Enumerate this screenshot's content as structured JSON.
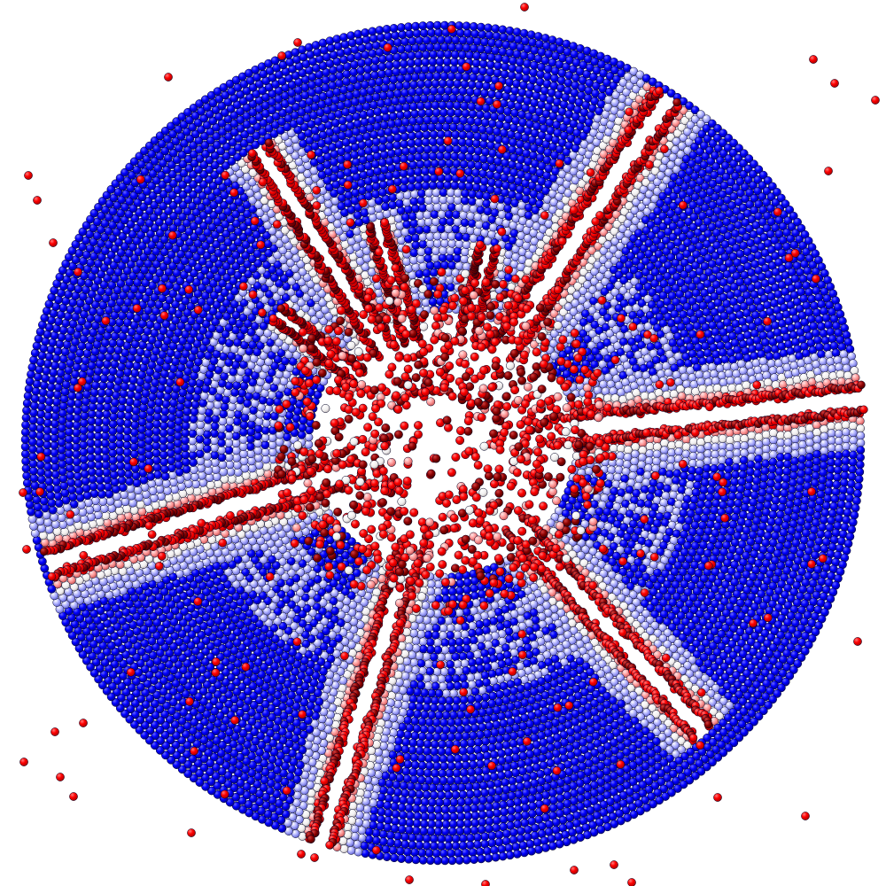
{
  "scene": {
    "subject": "fractured-particle-disk",
    "colors": {
      "intact": "#0000ff",
      "intact_edge": "#000033",
      "damaged": "#ff0000",
      "damaged_dark": "#8b0000",
      "transition_light": "#c8c8ff",
      "transition_white": "#f4f4f4",
      "background": "#ffffff"
    }
  }
}
